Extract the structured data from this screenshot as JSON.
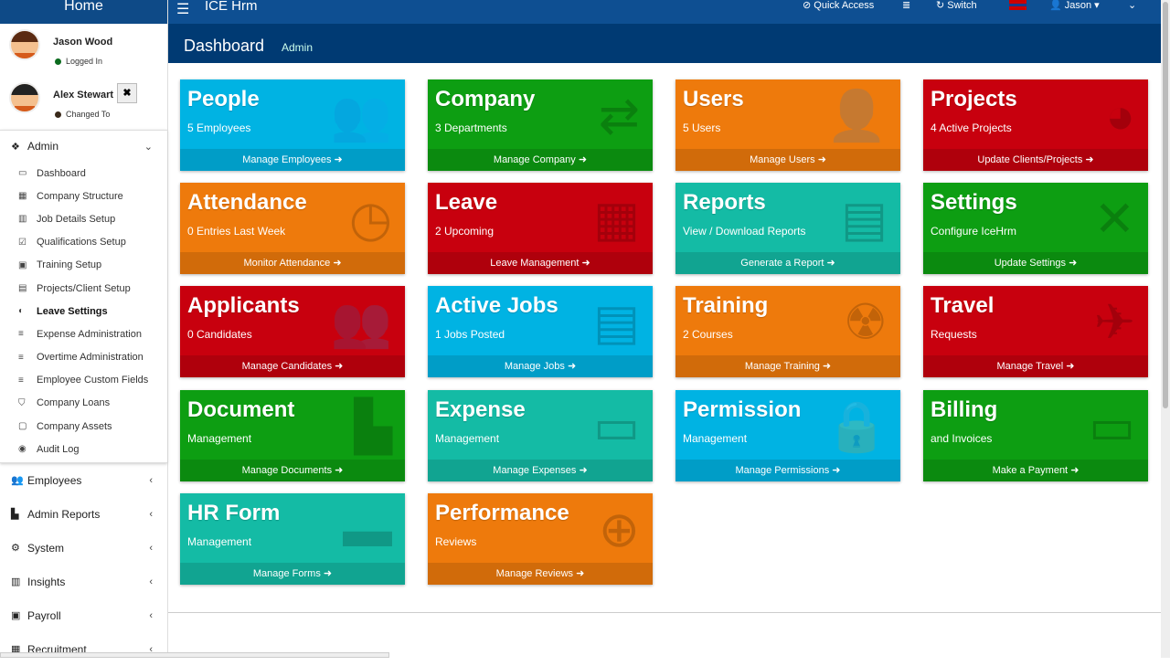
{
  "sidebar": {
    "home": "Home",
    "users": [
      {
        "name": "Jason Wood",
        "status": "Logged In",
        "status_color": "#0b6b1e"
      },
      {
        "name": "Alex Stewart",
        "status": "Changed To",
        "status_color": "#3a2a1a"
      }
    ],
    "admin": {
      "label": "Admin",
      "items": [
        {
          "label": "Dashboard",
          "icon": "desktop-icon"
        },
        {
          "label": "Company Structure",
          "icon": "building-icon"
        },
        {
          "label": "Job Details Setup",
          "icon": "columns-icon"
        },
        {
          "label": "Qualifications Setup",
          "icon": "check-square-icon"
        },
        {
          "label": "Training Setup",
          "icon": "briefcase-icon"
        },
        {
          "label": "Projects/Client Setup",
          "icon": "list-icon"
        },
        {
          "label": "Leave Settings",
          "icon": "toggle-icon",
          "active": true
        },
        {
          "label": "Expense Administration",
          "icon": "bars-icon"
        },
        {
          "label": "Overtime Administration",
          "icon": "bars-icon"
        },
        {
          "label": "Employee Custom Fields",
          "icon": "bars-icon"
        },
        {
          "label": "Company Loans",
          "icon": "shield-icon"
        },
        {
          "label": "Company Assets",
          "icon": "box-icon"
        },
        {
          "label": "Audit Log",
          "icon": "eye-icon"
        }
      ]
    },
    "menus": [
      {
        "label": "Employees",
        "icon": "users-icon"
      },
      {
        "label": "Admin Reports",
        "icon": "file-icon"
      },
      {
        "label": "System",
        "icon": "cogs-icon"
      },
      {
        "label": "Insights",
        "icon": "bar-chart-icon"
      },
      {
        "label": "Payroll",
        "icon": "money-icon"
      },
      {
        "label": "Recruitment",
        "icon": "grid-icon"
      }
    ]
  },
  "topbar": {
    "brand": "ICE Hrm",
    "quick_access": "Quick Access",
    "switch": "Switch",
    "user": "Jason"
  },
  "header": {
    "title": "Dashboard",
    "subtitle": "Admin"
  },
  "cards": [
    {
      "title": "People",
      "sub": "5 Employees",
      "link": "Manage Employees",
      "color": "#00b3e3",
      "icon": "users-icon"
    },
    {
      "title": "Company",
      "sub": "3 Departments",
      "link": "Manage Company",
      "color": "#0d9e12",
      "icon": "random-icon"
    },
    {
      "title": "Users",
      "sub": "5 Users",
      "link": "Manage Users",
      "color": "#ee7a0c",
      "icon": "user-plus-icon"
    },
    {
      "title": "Projects",
      "sub": "4 Active Projects",
      "link": "Update Clients/Projects",
      "color": "#c8000e",
      "icon": "pie-chart-icon"
    },
    {
      "title": "Attendance",
      "sub": "0 Entries Last Week",
      "link": "Monitor Attendance",
      "color": "#ee7a0c",
      "icon": "clock-icon"
    },
    {
      "title": "Leave",
      "sub": "2 Upcoming",
      "link": "Leave Management",
      "color": "#c8000e",
      "icon": "calendar-icon"
    },
    {
      "title": "Reports",
      "sub": "View / Download Reports",
      "link": "Generate a Report",
      "color": "#14bba5",
      "icon": "file-text-icon"
    },
    {
      "title": "Settings",
      "sub": "Configure IceHrm",
      "link": "Update Settings",
      "color": "#0d9e12",
      "icon": "wrench-icon"
    },
    {
      "title": "Applicants",
      "sub": "0 Candidates",
      "link": "Manage Candidates",
      "color": "#c8000e",
      "icon": "users-icon"
    },
    {
      "title": "Active Jobs",
      "sub": "1 Jobs Posted",
      "link": "Manage Jobs",
      "color": "#00b3e3",
      "icon": "clipboard-icon"
    },
    {
      "title": "Training",
      "sub": "2 Courses",
      "link": "Manage Training",
      "color": "#ee7a0c",
      "icon": "radiation-icon"
    },
    {
      "title": "Travel",
      "sub": "Requests",
      "link": "Manage Travel",
      "color": "#c8000e",
      "icon": "plane-icon"
    },
    {
      "title": "Document",
      "sub": "Management",
      "link": "Manage Documents",
      "color": "#0d9e12",
      "icon": "file-icon"
    },
    {
      "title": "Expense",
      "sub": "Management",
      "link": "Manage Expenses",
      "color": "#14bba5",
      "icon": "credit-card-icon"
    },
    {
      "title": "Permission",
      "sub": "Management",
      "link": "Manage Permissions",
      "color": "#00b3e3",
      "icon": "lock-icon"
    },
    {
      "title": "Billing",
      "sub": "and Invoices",
      "link": "Make a Payment",
      "color": "#0d9e12",
      "icon": "battery-icon"
    },
    {
      "title": "HR Form",
      "sub": "Management",
      "link": "Manage Forms",
      "color": "#14bba5",
      "icon": "folder-icon"
    },
    {
      "title": "Performance",
      "sub": "Reviews",
      "link": "Manage Reviews",
      "color": "#ee7a0c",
      "icon": "crosshairs-icon"
    }
  ]
}
